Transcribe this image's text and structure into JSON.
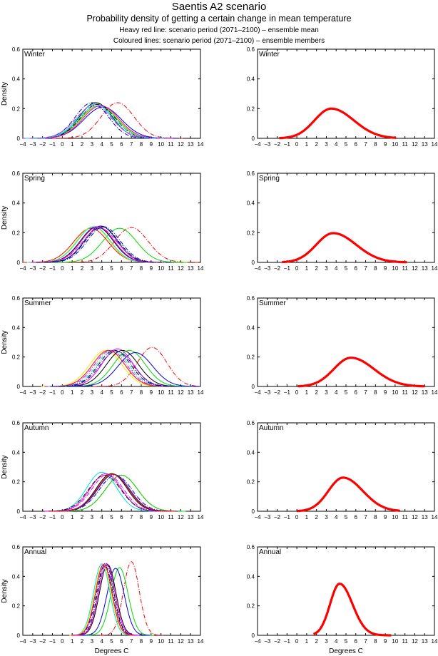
{
  "header": {
    "title": "Saentis A2 scenario",
    "subtitle": "Probability density of getting a certain change in mean temperature",
    "line1": "Heavy red line: scenario period (2071–2100) – ensemble mean",
    "line2": "Coloured lines: scenario period (2071–2100) – ensemble members"
  },
  "chart_data": {
    "type": "line",
    "xlabel": "Degrees C",
    "ylabel": "Density",
    "xlim": [
      -4,
      14
    ],
    "ylim": [
      0,
      0.6
    ],
    "xticks": [
      -4,
      -3,
      -2,
      -1,
      0,
      1,
      2,
      3,
      4,
      5,
      6,
      7,
      8,
      9,
      10,
      11,
      12,
      13,
      14
    ],
    "yticks": [
      0,
      0.2,
      0.4,
      0.6
    ],
    "ytick_labels": [
      "0",
      "0.2",
      "0.4",
      "0.6"
    ],
    "grid": false,
    "colors": {
      "red": "#ff0000",
      "green": "#00dd00",
      "blue": "#0000dd",
      "cyan": "#00e0e0",
      "magenta": "#ee00ee",
      "yellow": "#eeee00",
      "black": "#000000"
    },
    "panels": [
      {
        "season": "Winter",
        "members": [
          {
            "color": "red",
            "dash": true,
            "mean": 5.6,
            "peak": 0.24
          },
          {
            "color": "blue",
            "dash": true,
            "mean": 3.0,
            "peak": 0.24
          },
          {
            "color": "black",
            "dash": false,
            "mean": 3.4,
            "peak": 0.24
          },
          {
            "color": "cyan",
            "dash": false,
            "mean": 3.3,
            "peak": 0.23
          },
          {
            "color": "magenta",
            "dash": true,
            "mean": 3.2,
            "peak": 0.22
          },
          {
            "color": "green",
            "dash": false,
            "mean": 3.7,
            "peak": 0.22
          },
          {
            "color": "yellow",
            "dash": false,
            "mean": 3.8,
            "peak": 0.22
          },
          {
            "color": "blue",
            "dash": false,
            "mean": 4.1,
            "peak": 0.21
          },
          {
            "color": "black",
            "dash": true,
            "mean": 3.6,
            "peak": 0.23
          },
          {
            "color": "magenta",
            "dash": false,
            "mean": 3.9,
            "peak": 0.22
          },
          {
            "color": "cyan",
            "dash": true,
            "mean": 3.5,
            "peak": 0.22
          }
        ],
        "ensemble_mean": {
          "mode": 3.5,
          "peak": 0.2,
          "range": [
            -1.8,
            10.1
          ]
        }
      },
      {
        "season": "Spring",
        "members": [
          {
            "color": "red",
            "dash": true,
            "mean": 7.0,
            "peak": 0.235
          },
          {
            "color": "green",
            "dash": false,
            "mean": 5.8,
            "peak": 0.23
          },
          {
            "color": "red",
            "dash": false,
            "mean": 2.9,
            "peak": 0.23
          },
          {
            "color": "yellow",
            "dash": false,
            "mean": 3.1,
            "peak": 0.24
          },
          {
            "color": "cyan",
            "dash": false,
            "mean": 3.2,
            "peak": 0.24
          },
          {
            "color": "black",
            "dash": false,
            "mean": 3.5,
            "peak": 0.24
          },
          {
            "color": "blue",
            "dash": false,
            "mean": 3.9,
            "peak": 0.245
          },
          {
            "color": "magenta",
            "dash": true,
            "mean": 3.8,
            "peak": 0.23
          },
          {
            "color": "blue",
            "dash": true,
            "mean": 4.2,
            "peak": 0.24
          },
          {
            "color": "magenta",
            "dash": false,
            "mean": 3.6,
            "peak": 0.24
          },
          {
            "color": "black",
            "dash": true,
            "mean": 4.0,
            "peak": 0.24
          }
        ],
        "ensemble_mean": {
          "mode": 3.7,
          "peak": 0.197,
          "range": [
            -1.5,
            11.2
          ]
        }
      },
      {
        "season": "Summer",
        "members": [
          {
            "color": "red",
            "dash": true,
            "mean": 9.1,
            "peak": 0.265
          },
          {
            "color": "yellow",
            "dash": false,
            "mean": 4.4,
            "peak": 0.245
          },
          {
            "color": "red",
            "dash": false,
            "mean": 4.7,
            "peak": 0.245
          },
          {
            "color": "magenta",
            "dash": true,
            "mean": 4.9,
            "peak": 0.245
          },
          {
            "color": "cyan",
            "dash": true,
            "mean": 5.1,
            "peak": 0.245
          },
          {
            "color": "magenta",
            "dash": false,
            "mean": 5.6,
            "peak": 0.255
          },
          {
            "color": "black",
            "dash": false,
            "mean": 6.1,
            "peak": 0.245
          },
          {
            "color": "green",
            "dash": false,
            "mean": 6.8,
            "peak": 0.245
          },
          {
            "color": "blue",
            "dash": false,
            "mean": 7.4,
            "peak": 0.23
          },
          {
            "color": "black",
            "dash": true,
            "mean": 5.3,
            "peak": 0.245
          },
          {
            "color": "blue",
            "dash": true,
            "mean": 5.5,
            "peak": 0.24
          }
        ],
        "ensemble_mean": {
          "mode": 5.5,
          "peak": 0.195,
          "range": [
            0.1,
            13.0
          ]
        }
      },
      {
        "season": "Autumn",
        "members": [
          {
            "color": "red",
            "dash": true,
            "mean": 6.0,
            "peak": 0.245
          },
          {
            "color": "green",
            "dash": false,
            "mean": 6.0,
            "peak": 0.245
          },
          {
            "color": "cyan",
            "dash": false,
            "mean": 4.0,
            "peak": 0.265
          },
          {
            "color": "magenta",
            "dash": false,
            "mean": 4.4,
            "peak": 0.255
          },
          {
            "color": "black",
            "dash": true,
            "mean": 4.3,
            "peak": 0.245
          },
          {
            "color": "yellow",
            "dash": false,
            "mean": 5.1,
            "peak": 0.255
          },
          {
            "color": "black",
            "dash": false,
            "mean": 5.0,
            "peak": 0.255
          },
          {
            "color": "blue",
            "dash": false,
            "mean": 5.2,
            "peak": 0.25
          },
          {
            "color": "magenta",
            "dash": true,
            "mean": 4.6,
            "peak": 0.25
          },
          {
            "color": "blue",
            "dash": true,
            "mean": 5.4,
            "peak": 0.245
          },
          {
            "color": "red",
            "dash": false,
            "mean": 5.1,
            "peak": 0.25
          }
        ],
        "ensemble_mean": {
          "mode": 4.7,
          "peak": 0.228,
          "range": [
            0.0,
            10.5
          ]
        }
      },
      {
        "season": "Annual",
        "members": [
          {
            "color": "red",
            "dash": true,
            "mean": 7.0,
            "peak": 0.5
          },
          {
            "color": "green",
            "dash": false,
            "mean": 5.8,
            "peak": 0.46
          },
          {
            "color": "blue",
            "dash": false,
            "mean": 5.4,
            "peak": 0.455
          },
          {
            "color": "black",
            "dash": false,
            "mean": 4.6,
            "peak": 0.48
          },
          {
            "color": "cyan",
            "dash": false,
            "mean": 4.0,
            "peak": 0.485
          },
          {
            "color": "yellow",
            "dash": false,
            "mean": 4.1,
            "peak": 0.475
          },
          {
            "color": "magenta",
            "dash": true,
            "mean": 4.2,
            "peak": 0.485
          },
          {
            "color": "black",
            "dash": true,
            "mean": 4.4,
            "peak": 0.49
          },
          {
            "color": "blue",
            "dash": true,
            "mean": 4.3,
            "peak": 0.475
          },
          {
            "color": "red",
            "dash": false,
            "mean": 4.2,
            "peak": 0.48
          },
          {
            "color": "magenta",
            "dash": false,
            "mean": 4.5,
            "peak": 0.485
          }
        ],
        "ensemble_mean": {
          "mode": 4.35,
          "peak": 0.35,
          "range": [
            1.7,
            9.6
          ]
        }
      }
    ]
  }
}
